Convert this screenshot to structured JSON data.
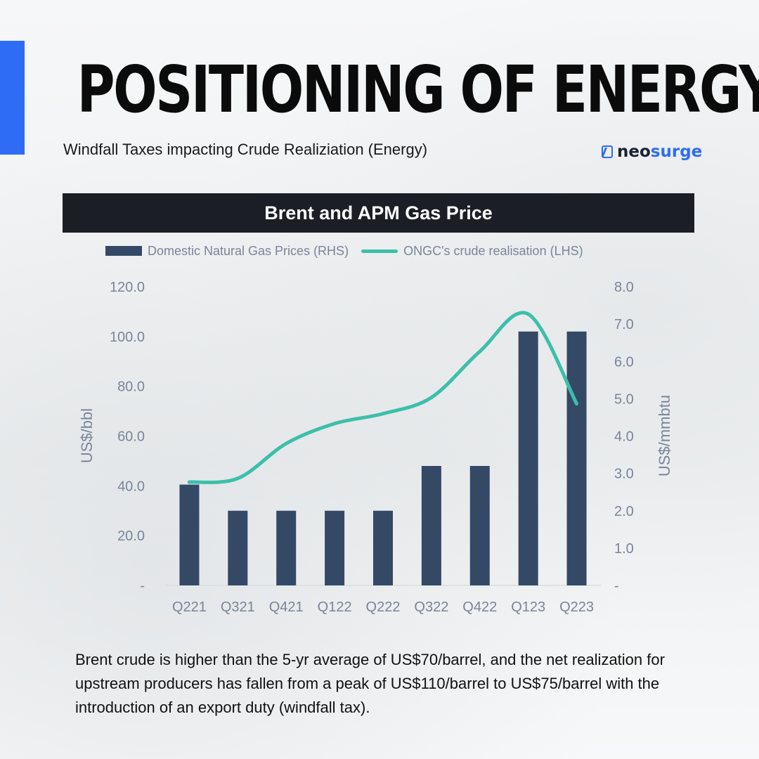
{
  "header": {
    "title": "POSITIONING OF ENERGY",
    "subtitle": "Windfall Taxes impacting Crude Realiziation (Energy)"
  },
  "brand": {
    "name_part1": "neo",
    "name_part2": "surge",
    "icon": "neosurge-logo-icon"
  },
  "colors": {
    "accent": "#2f6cf6",
    "bar": "#344966",
    "line": "#3cbfaa",
    "banner": "#1b1e24"
  },
  "chart_data": {
    "type": "bar",
    "title": "Brent and APM Gas Price",
    "categories": [
      "Q221",
      "Q321",
      "Q421",
      "Q122",
      "Q222",
      "Q322",
      "Q422",
      "Q123",
      "Q223"
    ],
    "series": [
      {
        "name": "Domestic Natural Gas Prices (RHS)",
        "type": "bar",
        "axis": "right",
        "values": [
          2.7,
          2.0,
          2.0,
          2.0,
          2.0,
          3.2,
          3.2,
          6.8,
          6.8
        ]
      },
      {
        "name": "ONGC's crude realisation (LHS)",
        "type": "line",
        "axis": "left",
        "values": [
          41.5,
          43.0,
          57.0,
          65.0,
          69.0,
          75.5,
          94.0,
          109.0,
          73.0
        ]
      }
    ],
    "ylabel": "US$/bbl",
    "y2label": "US$/mmbtu",
    "ylim": [
      0,
      120
    ],
    "y2lim": [
      0,
      8
    ],
    "y_ticks": [
      "-",
      "20.0",
      "40.0",
      "60.0",
      "80.0",
      "100.0",
      "120.0"
    ],
    "y2_ticks": [
      "-",
      "1.0",
      "2.0",
      "3.0",
      "4.0",
      "5.0",
      "6.0",
      "7.0",
      "8.0"
    ],
    "legend_position": "top",
    "grid": false
  },
  "footer": {
    "text": "Brent crude is higher than the 5-yr average of US$70/barrel, and the net realization for upstream producers has fallen from a peak of US$110/barrel to US$75/barrel with the introduction of an export duty (windfall tax)."
  }
}
